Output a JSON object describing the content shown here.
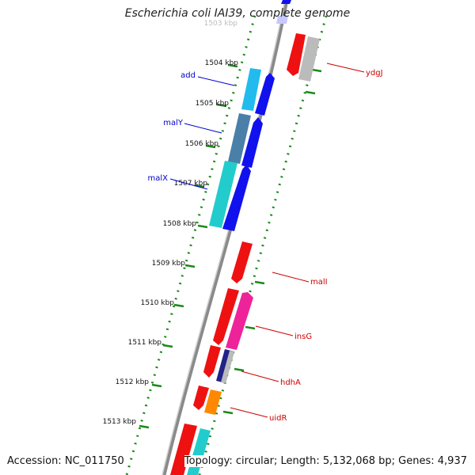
{
  "title": "Escherichia coli IAI39, complete genome",
  "footer": {
    "accession": "Accession: NC_011750",
    "topology": "Topology: circular; Length: 5,132,068 bp; Genes: 4,937"
  },
  "scale_labels": [
    "1503 kbp",
    "1504 kbp",
    "1505 kbp",
    "1506 kbp",
    "1507 kbp",
    "1508 kbp",
    "1509 kbp",
    "1510 kbp",
    "1511 kbp",
    "1512 kbp",
    "1513 kbp"
  ],
  "genes_left": [
    {
      "name": "add",
      "color": "#0000cc"
    },
    {
      "name": "malY",
      "color": "#0000cc"
    },
    {
      "name": "malX",
      "color": "#0000cc"
    }
  ],
  "genes_right": [
    {
      "name": "ydgJ",
      "color": "#cc0000"
    },
    {
      "name": "malI",
      "color": "#cc0000"
    },
    {
      "name": "insG",
      "color": "#cc0000"
    },
    {
      "name": "hdhA",
      "color": "#cc0000"
    },
    {
      "name": "uidR",
      "color": "#cc0000"
    }
  ],
  "colors": {
    "backbone": "#8a8a8a",
    "ticks": "#1a8a1a",
    "red": "#ee1111",
    "blue": "#1111ee",
    "cyan": "#22cccc",
    "sky": "#22bbee",
    "steel": "#4a7fa8",
    "magenta": "#ee2299",
    "orange": "#ff8800",
    "gray": "#bbbbbb",
    "navy": "#222288"
  }
}
